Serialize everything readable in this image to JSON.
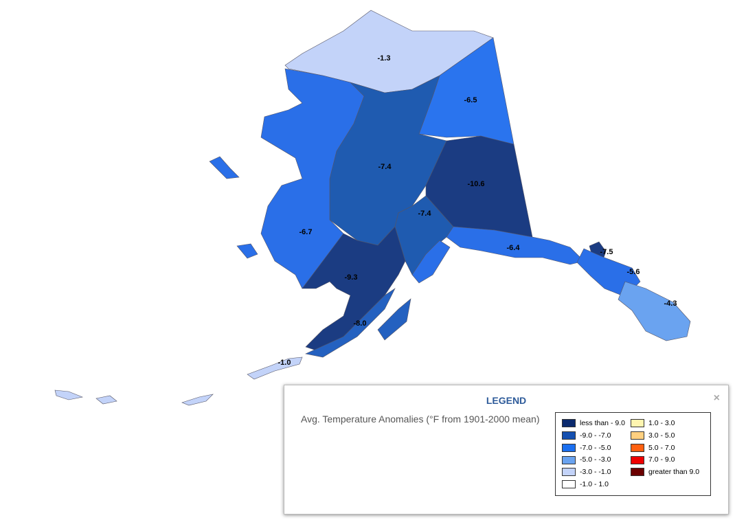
{
  "map": {
    "regions": [
      {
        "label": "-1.3",
        "color": "#c3d3f9"
      },
      {
        "label": "-6.5",
        "color": "#2a74ee"
      },
      {
        "label": "-7.4",
        "color": "#1f5bb0"
      },
      {
        "label": "-10.6",
        "color": "#1b3c82"
      },
      {
        "label": "-7.4",
        "color": "#1f5bb0"
      },
      {
        "label": "-6.7",
        "color": "#2a6fe8"
      },
      {
        "label": "-9.3",
        "color": "#1b3c82"
      },
      {
        "label": "-8.0",
        "color": "#2461c0"
      },
      {
        "label": "-6.4",
        "color": "#2a6fe8"
      },
      {
        "label": "-1.0",
        "color": "#c3d3f9"
      },
      {
        "label": "-7.5",
        "color": "#1b3c82"
      },
      {
        "label": "-5.6",
        "color": "#2a6fe8"
      },
      {
        "label": "-4.3",
        "color": "#6aa3f0"
      }
    ]
  },
  "legend": {
    "title": "LEGEND",
    "close": "×",
    "subtitle": "Avg. Temperature Anomalies (°F from 1901-2000 mean)",
    "items": [
      {
        "label": "less than - 9.0",
        "color": "#0b2a6e"
      },
      {
        "label": "-9.0 - -7.0",
        "color": "#1550b0"
      },
      {
        "label": "-7.0 - -5.0",
        "color": "#1a6ff0"
      },
      {
        "label": "-5.0 - -3.0",
        "color": "#6aa3f0"
      },
      {
        "label": "-3.0 - -1.0",
        "color": "#c3d3f9"
      },
      {
        "label": "-1.0 - 1.0",
        "color": "#ffffff"
      },
      {
        "label": "1.0 - 3.0",
        "color": "#fff5b0"
      },
      {
        "label": "3.0 - 5.0",
        "color": "#ffd080"
      },
      {
        "label": "5.0 - 7.0",
        "color": "#ff6010"
      },
      {
        "label": "7.0 - 9.0",
        "color": "#ee0000"
      },
      {
        "label": "greater than 9.0",
        "color": "#6b0000"
      }
    ]
  }
}
